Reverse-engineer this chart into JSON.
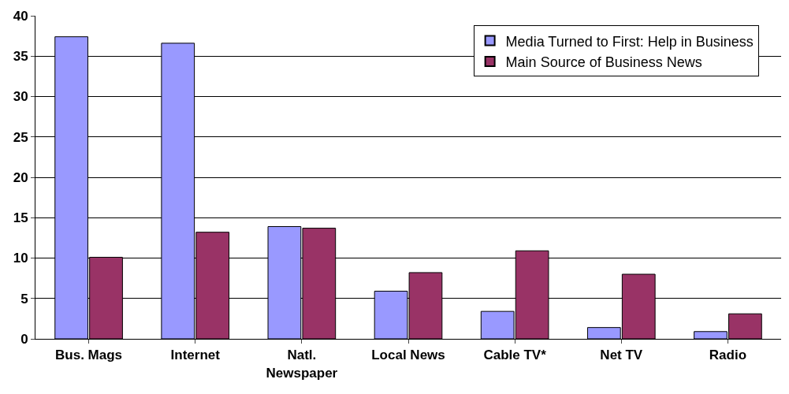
{
  "chart_data": {
    "type": "bar",
    "categories": [
      "Bus. Mags",
      "Internet",
      "Natl.\nNewspaper",
      "Local News",
      "Cable TV*",
      "Net TV",
      "Radio"
    ],
    "series": [
      {
        "name": "Media Turned to First: Help in Business",
        "color": "#9999ff",
        "values": [
          37.4,
          36.6,
          13.9,
          5.9,
          3.4,
          1.4,
          0.9
        ]
      },
      {
        "name": "Main Source of Business News",
        "color": "#993366",
        "values": [
          10.1,
          13.2,
          13.7,
          8.2,
          10.9,
          8.0,
          3.1
        ]
      }
    ],
    "ylim": [
      0,
      40
    ],
    "yticks": [
      0,
      5,
      10,
      15,
      20,
      25,
      30,
      35,
      40
    ],
    "grid": "y",
    "legend": "top right"
  }
}
